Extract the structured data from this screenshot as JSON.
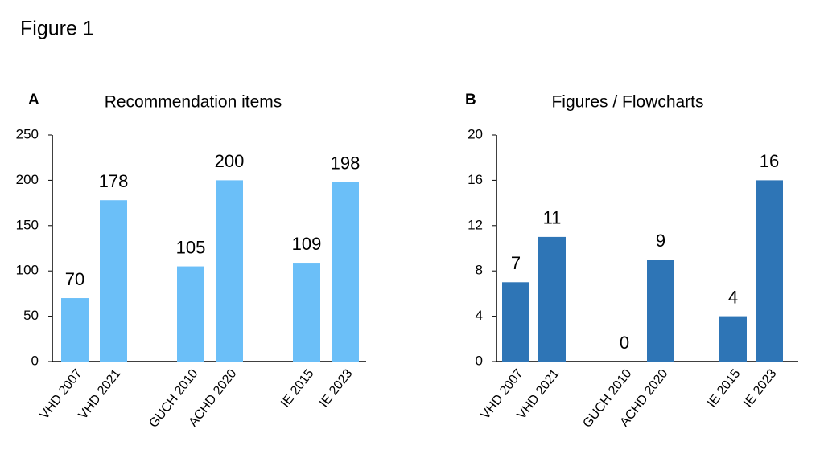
{
  "figure_title": "Figure 1",
  "chart_data": [
    {
      "type": "bar",
      "panel_label": "A",
      "title": "Recommendation items",
      "categories": [
        "VHD  2007",
        "VHD 2021",
        "GUCH 2010",
        "ACHD 2020",
        "IE 2015",
        "IE 2023"
      ],
      "values": [
        70,
        178,
        105,
        200,
        109,
        198
      ],
      "color": "#6bbff8",
      "ylim": [
        0,
        250
      ],
      "yticks": [
        0,
        50,
        100,
        150,
        200,
        250
      ],
      "grid": false
    },
    {
      "type": "bar",
      "panel_label": "B",
      "title": "Figures / Flowcharts",
      "categories": [
        "VHD 2007",
        "VHD 2021",
        "GUCH 2010",
        "ACHD 2020",
        "IE 2015",
        "IE 2023"
      ],
      "values": [
        7,
        11,
        0,
        9,
        4,
        16
      ],
      "color": "#2e75b6",
      "ylim": [
        0,
        20
      ],
      "yticks": [
        0,
        4,
        8,
        12,
        16,
        20
      ],
      "grid": false
    }
  ]
}
